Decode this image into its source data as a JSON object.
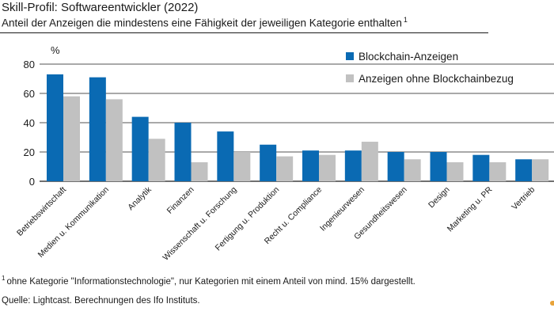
{
  "header": {
    "title": "Skill-Profil: Softwareentwickler (2022)",
    "subtitle": "Anteil der Anzeigen die mindestens eine Fähigkeit der jeweiligen Kategorie enthalten",
    "subtitle_note": "1"
  },
  "footer": {
    "footnote_marker": "1",
    "footnote": "ohne  Kategorie \"Informationstechnologie\",  nur Kategorien mit einem Anteil von mind. 15% dargestellt.",
    "source": "Quelle:  Lightcast.  Berechnungen  des Ifo Instituts."
  },
  "chart_data": {
    "type": "bar",
    "title": "Skill-Profil: Softwareentwickler (2022)",
    "ylabel": "%",
    "xlabel": "",
    "ylim": [
      0,
      80
    ],
    "yticks": [
      "0",
      "20",
      "40",
      "60",
      "80"
    ],
    "ytick_values": [
      0,
      20,
      40,
      60,
      80
    ],
    "legend_position": "top-right",
    "categories": [
      "Betriebswirtschaft",
      "Medien u. Kommunikation",
      "Analytik",
      "Finanzen",
      "Wissenschaft u. Forschung",
      "Fertigung u. Produktion",
      "Recht u. Compliance",
      "Ingenieurwesen",
      "Gesundheitswesen",
      "Design",
      "Marketing u. PR",
      "Vertrieb"
    ],
    "series": [
      {
        "name": "Blockchain-Anzeigen",
        "color": "#0a6ab3",
        "values": [
          73,
          71,
          44,
          40,
          34,
          25,
          21,
          21,
          20,
          20,
          18,
          15
        ]
      },
      {
        "name": "Anzeigen ohne Blockchainbezug",
        "color": "#c1c1c1",
        "values": [
          58,
          56,
          29,
          13,
          20,
          17,
          18,
          27,
          15,
          13,
          13,
          15
        ]
      }
    ]
  }
}
